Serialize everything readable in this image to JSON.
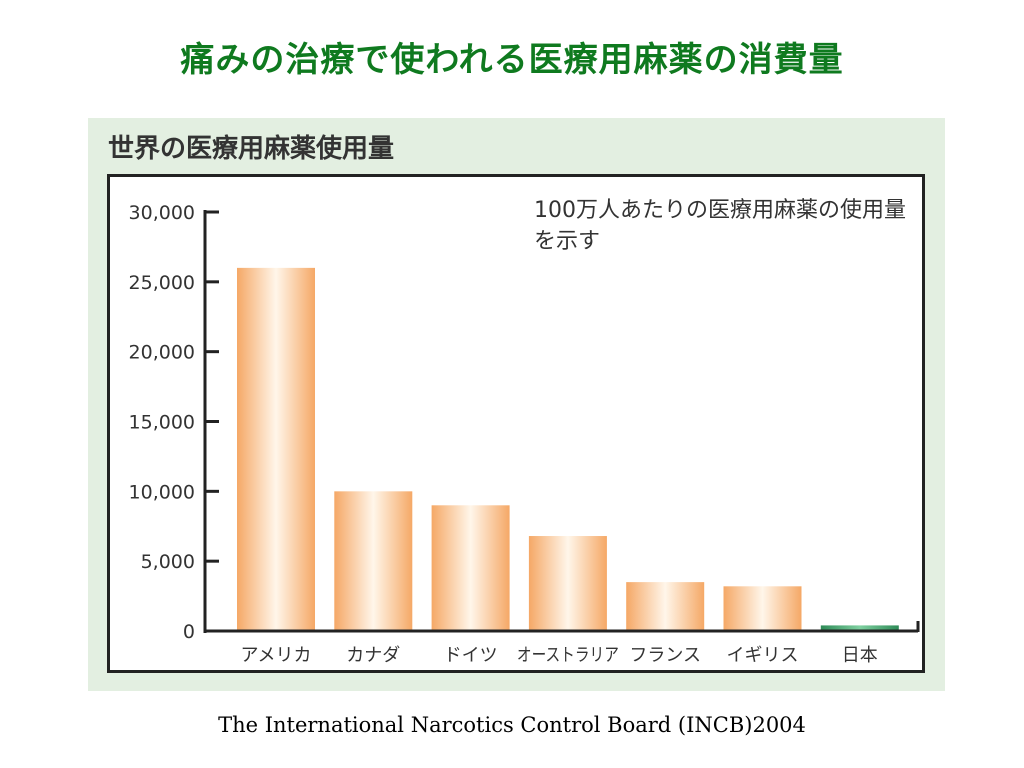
{
  "slide": {
    "title": "痛みの治療で使われる医療用麻薬の消費量",
    "source": "The International Narcotics Control Board (INCB)2004"
  },
  "figure": {
    "heading": "世界の医療用麻薬使用量",
    "note": "100万人あたりの医療用麻薬の使用量を示す"
  },
  "colors": {
    "title_green": "#0f7a1f",
    "panel_background": "#e3efe1",
    "bar_orange": "#f5a866",
    "bar_highlight": "#fff6ea",
    "japan_bar_green": "#2e8b57"
  },
  "chart_data": {
    "type": "bar",
    "title": "世界の医療用麻薬使用量",
    "subtitle": "100万人あたりの医療用麻薬の使用量を示す",
    "xlabel": "",
    "ylabel": "",
    "categories": [
      "アメリカ",
      "カナダ",
      "ドイツ",
      "オーストラリア",
      "フランス",
      "イギリス",
      "日本"
    ],
    "values": [
      26000,
      10000,
      9000,
      6800,
      3500,
      3200,
      400
    ],
    "ylim": [
      0,
      30000
    ],
    "yticks": [
      0,
      5000,
      10000,
      15000,
      20000,
      25000,
      30000
    ],
    "ytick_labels": [
      "0",
      "5,000",
      "10,000",
      "15,000",
      "20,000",
      "25,000",
      "30,000"
    ],
    "grid": false,
    "legend": "none"
  }
}
